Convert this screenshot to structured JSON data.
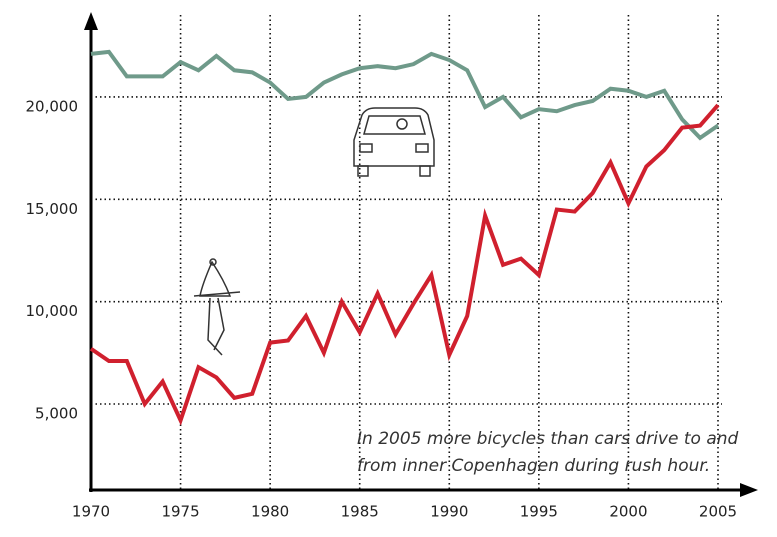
{
  "chart_data": {
    "type": "line",
    "x": [
      1970,
      1971,
      1972,
      1973,
      1974,
      1975,
      1976,
      1977,
      1978,
      1979,
      1980,
      1981,
      1982,
      1983,
      1984,
      1985,
      1986,
      1987,
      1988,
      1989,
      1990,
      1991,
      1992,
      1993,
      1994,
      1995,
      1996,
      1997,
      1998,
      1999,
      2000,
      2001,
      2002,
      2003,
      2004,
      2005
    ],
    "series": [
      {
        "color": "#6f9a8a",
        "values": [
          22100,
          22200,
          21000,
          21000,
          21000,
          21700,
          21300,
          22000,
          21300,
          21200,
          20700,
          19900,
          20000,
          20700,
          21100,
          21400,
          21500,
          21400,
          21600,
          22100,
          21800,
          21300,
          19500,
          20000,
          19000,
          19400,
          19300,
          19600,
          19800,
          20400,
          20300,
          20000,
          20300,
          18900,
          18000,
          18600
        ]
      },
      {
        "color": "#d0202e",
        "values": [
          7700,
          7100,
          7100,
          5000,
          6100,
          4200,
          6800,
          6300,
          5300,
          5500,
          8000,
          8100,
          9300,
          7500,
          10000,
          8500,
          10400,
          8400,
          9900,
          11300,
          7400,
          9300,
          14200,
          11800,
          12100,
          11300,
          14500,
          14400,
          15300,
          16800,
          14800,
          16600,
          17400,
          18500,
          18600,
          19600
        ]
      }
    ],
    "xlim": [
      1970,
      2005
    ],
    "xticks": [
      1970,
      1975,
      1980,
      1985,
      1990,
      1995,
      2000,
      2005
    ],
    "ylim": [
      800,
      24000
    ],
    "yticks": [
      {
        "value": 5000,
        "label": "5,000"
      },
      {
        "value": 10000,
        "label": "10,000"
      },
      {
        "value": 15000,
        "label": "15,000"
      },
      {
        "value": 20000,
        "label": "20,000"
      }
    ],
    "grid": true,
    "annotation": [
      "In 2005 more bicycles than cars drive to and",
      "from inner Copenhagen during rush hour."
    ]
  }
}
